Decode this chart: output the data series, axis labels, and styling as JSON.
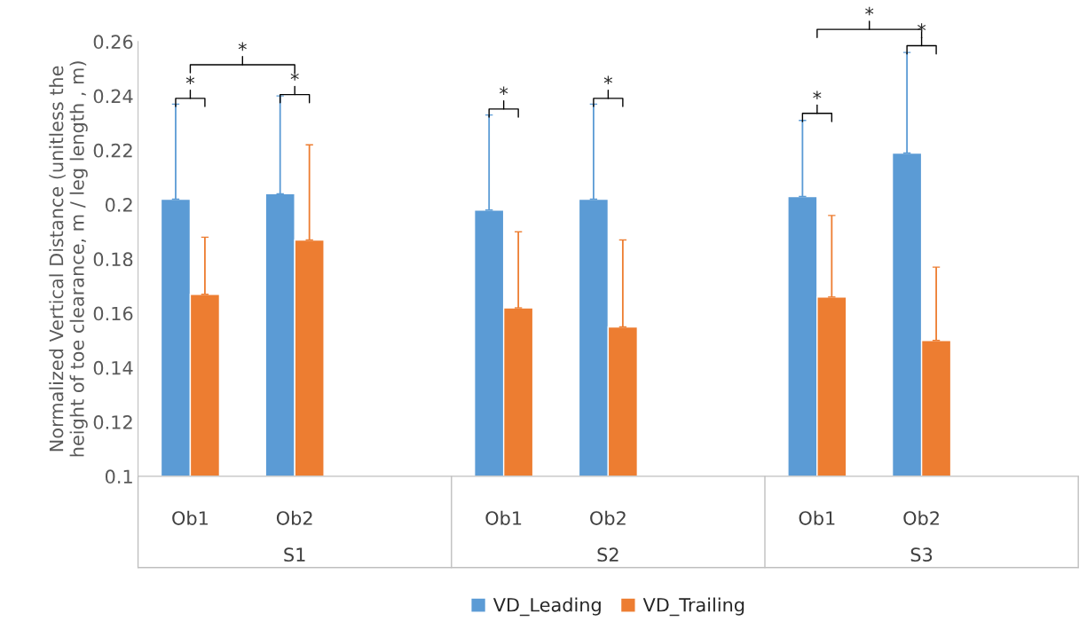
{
  "chart_data": {
    "type": "bar",
    "ylabel": "Normalized Vertical Distance (unitless the\nheight of toe clearance, m / leg length , m)",
    "categories": [
      "Ob1",
      "Ob2",
      null,
      "Ob1",
      "Ob2",
      null,
      "Ob1",
      "Ob2",
      null
    ],
    "series": [
      {
        "name": "VD_Leading",
        "color": "#5b9bd5",
        "values": [
          0.202,
          0.204,
          null,
          0.198,
          0.202,
          null,
          0.203,
          0.219,
          null
        ],
        "errors": [
          [
            0.202,
            0.237
          ],
          [
            0.204,
            0.24
          ],
          null,
          [
            0.198,
            0.233
          ],
          [
            0.202,
            0.237
          ],
          null,
          [
            0.203,
            0.231
          ],
          [
            0.219,
            0.256
          ],
          null
        ]
      },
      {
        "name": "VD_Trailing",
        "color": "#ed7d31",
        "values": [
          0.167,
          0.187,
          null,
          0.162,
          0.155,
          null,
          0.166,
          0.15,
          null
        ],
        "errors": [
          [
            0.167,
            0.188
          ],
          [
            0.187,
            0.222
          ],
          null,
          [
            0.162,
            0.19
          ],
          [
            0.155,
            0.187
          ],
          null,
          [
            0.166,
            0.196
          ],
          [
            0.15,
            0.177
          ],
          null
        ]
      }
    ],
    "ylim": [
      0.1,
      0.26
    ],
    "yticks": [
      {
        "value": 0.1,
        "label": "0.1"
      },
      {
        "value": 0.12,
        "label": "0.12"
      },
      {
        "value": 0.14,
        "label": "0.14"
      },
      {
        "value": 0.16,
        "label": "0.16"
      },
      {
        "value": 0.18,
        "label": "0.18"
      },
      {
        "value": 0.2,
        "label": "0.2"
      },
      {
        "value": 0.22,
        "label": "0.22"
      },
      {
        "value": 0.24,
        "label": "0.24"
      },
      {
        "value": 0.26,
        "label": "0.26"
      }
    ],
    "annotations": [
      "S1",
      "S2",
      "S3",
      "*",
      "*",
      "*",
      "*",
      "*",
      "*",
      "*",
      "*"
    ],
    "grid": false,
    "legend": "bottom"
  }
}
